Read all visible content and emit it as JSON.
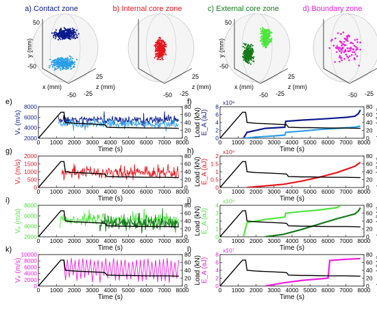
{
  "colors": {
    "contact_dark": "#0b1a8c",
    "contact_light": "#2a9fe8",
    "internal": "#e8161c",
    "external_light": "#4ce63c",
    "external_dark": "#137a1a",
    "boundary": "#f01de0",
    "load": "#000000"
  },
  "chart_data": [
    {
      "type": "scatter",
      "title": "a) Contact zone",
      "xlabel": "x (mm)",
      "ylabel": "y (mm)",
      "zlabel": "z (mm)",
      "ticks": {
        "y_top": "50",
        "y_bottom": "-50",
        "x": "-50",
        "z_a": "25",
        "z_b": "-25"
      },
      "series": [
        {
          "name": "",
          "color": "contact_dark"
        },
        {
          "name": "",
          "color": "contact_light"
        }
      ]
    },
    {
      "type": "scatter",
      "title": "b) Internal core zone",
      "xlabel": "",
      "ylabel": "",
      "zlabel": "z (mm)",
      "ticks": {
        "z_a": "25",
        "z_b": "-25",
        "x": "-50"
      },
      "series": [
        {
          "name": "",
          "color": "internal"
        }
      ]
    },
    {
      "type": "scatter",
      "title": "c) External core zone",
      "xlabel": "x (mm)",
      "ylabel": "y (mm)",
      "zlabel": "z (mm)",
      "ticks": {
        "y_top": "50",
        "y_bottom": "-50",
        "x": "-50",
        "z_a": "25",
        "z_b": "-25"
      },
      "series": [
        {
          "name": "",
          "color": "external_light"
        },
        {
          "name": "",
          "color": "external_dark"
        }
      ]
    },
    {
      "type": "scatter",
      "title": "d) Boundary zone",
      "xlabel": "",
      "ylabel": "",
      "zlabel": "z (mm)",
      "ticks": {
        "z_a": "25",
        "z_b": "-25",
        "x": "-50"
      },
      "series": [
        {
          "name": "",
          "color": "boundary"
        }
      ]
    },
    {
      "type": "line",
      "panel": "e)",
      "xlabel": "Time (s)",
      "ylabel": "Vₚ (m/s)",
      "y2label": "Load (kN)",
      "xlim": [
        0,
        8000
      ],
      "ylim": [
        2000,
        8000
      ],
      "y2lim": [
        0,
        80
      ],
      "xticks": [
        0,
        1000,
        2000,
        3000,
        4000,
        5000,
        6000,
        7000,
        8000
      ],
      "yticks": [
        2000,
        4000,
        6000,
        8000
      ],
      "y2ticks": [
        0,
        20,
        40,
        60,
        80
      ],
      "series": [
        {
          "kind": "noisy",
          "color": "contact_dark",
          "x": [
            1100,
            7800
          ],
          "base": 5500,
          "amp": 1200,
          "jump": 0.15
        },
        {
          "kind": "noisy",
          "color": "contact_light",
          "x": [
            1100,
            7800
          ],
          "base": 4700,
          "amp": 1000,
          "jump": 0.15
        },
        {
          "kind": "load",
          "color": "load"
        }
      ]
    },
    {
      "type": "line",
      "panel": "f)",
      "xlabel": "Time (s)",
      "ylabel": "E_A (aJ)",
      "y2label": "Load (kN)",
      "exponent": "x10⁸",
      "xlim": [
        0,
        8000
      ],
      "ylim": [
        0,
        8
      ],
      "y2lim": [
        0,
        80
      ],
      "xticks": [
        0,
        1000,
        2000,
        3000,
        4000,
        5000,
        6000,
        7000,
        8000
      ],
      "yticks": [
        0,
        2,
        4,
        6,
        8
      ],
      "y2ticks": [
        0,
        20,
        40,
        60,
        80
      ],
      "series": [
        {
          "kind": "path",
          "color": "contact_dark",
          "x": [
            1300,
            1500,
            2500,
            3600,
            3650,
            4500,
            6000,
            7000,
            7500,
            7700,
            7800
          ],
          "y": [
            0,
            1.5,
            2.5,
            2.8,
            4.3,
            4.6,
            5.0,
            5.3,
            5.6,
            6.3,
            7.2
          ]
        },
        {
          "kind": "path",
          "color": "contact_light",
          "x": [
            1300,
            2000,
            3000,
            3600,
            3650,
            4500,
            5500,
            6500,
            7500,
            7800
          ],
          "y": [
            0,
            0.3,
            0.6,
            0.8,
            1.5,
            1.8,
            2.2,
            2.5,
            2.8,
            3.1
          ]
        },
        {
          "kind": "load",
          "color": "load"
        }
      ]
    },
    {
      "type": "line",
      "panel": "g)",
      "xlabel": "Time (s)",
      "ylabel": "Vₚ (m/s)",
      "y2label": "Load (kN)",
      "xlim": [
        0,
        8000
      ],
      "ylim": [
        0,
        2000
      ],
      "y2lim": [
        0,
        80
      ],
      "xticks": [
        0,
        1000,
        2000,
        3000,
        4000,
        5000,
        6000,
        7000,
        8000
      ],
      "yticks": [
        0,
        500,
        1000,
        1500,
        2000
      ],
      "y2ticks": [
        0,
        20,
        40,
        60,
        80
      ],
      "series": [
        {
          "kind": "noisy",
          "color": "internal",
          "x": [
            1300,
            7800
          ],
          "base": 950,
          "amp": 450,
          "jump": 0.2
        },
        {
          "kind": "load",
          "color": "load"
        }
      ]
    },
    {
      "type": "line",
      "panel": "h)",
      "xlabel": "Time (s)",
      "ylabel": "E_A (aJ)",
      "y2label": "Load (kN)",
      "exponent": "x10⁹",
      "xlim": [
        0,
        8000
      ],
      "ylim": [
        0,
        2
      ],
      "y2lim": [
        0,
        80
      ],
      "xticks": [
        0,
        1000,
        2000,
        3000,
        4000,
        5000,
        6000,
        7000,
        8000
      ],
      "yticks": [
        0,
        0.5,
        1,
        1.5,
        2
      ],
      "y2ticks": [
        0,
        20,
        40,
        60,
        80
      ],
      "series": [
        {
          "kind": "path",
          "color": "internal",
          "x": [
            1500,
            2500,
            3500,
            4500,
            5500,
            6500,
            7500,
            7800
          ],
          "y": [
            0,
            0.1,
            0.2,
            0.4,
            0.65,
            0.95,
            1.35,
            1.6
          ]
        },
        {
          "kind": "load",
          "color": "load"
        }
      ]
    },
    {
      "type": "line",
      "panel": "i)",
      "xlabel": "Time (s)",
      "ylabel": "Vₚ (m/s)",
      "y2label": "Load (kN)",
      "xlim": [
        0,
        8000
      ],
      "ylim": [
        2000,
        8000
      ],
      "y2lim": [
        0,
        80
      ],
      "xticks": [
        0,
        1000,
        2000,
        3000,
        4000,
        5000,
        6000,
        7000,
        8000
      ],
      "yticks": [
        2000,
        4000,
        6000,
        8000
      ],
      "y2ticks": [
        0,
        20,
        40,
        60,
        80
      ],
      "series": [
        {
          "kind": "noisy",
          "color": "external_light",
          "x": [
            1200,
            7800
          ],
          "base": 5200,
          "amp": 1300,
          "jump": 0.2
        },
        {
          "kind": "noisy",
          "color": "external_dark",
          "x": [
            3400,
            7800
          ],
          "base": 4600,
          "amp": 1500,
          "jump": 0.2
        },
        {
          "kind": "load",
          "color": "load"
        }
      ]
    },
    {
      "type": "line",
      "panel": "j)",
      "xlabel": "Time (s)",
      "ylabel": "E_A (aJ)",
      "y2label": "Load (kN)",
      "exponent": "x10⁸",
      "xlim": [
        0,
        8000
      ],
      "ylim": [
        0,
        4
      ],
      "y2lim": [
        0,
        80
      ],
      "xticks": [
        0,
        1000,
        2000,
        3000,
        4000,
        5000,
        6000,
        7000,
        8000
      ],
      "yticks": [
        0,
        1,
        2,
        3,
        4
      ],
      "y2ticks": [
        0,
        20,
        40,
        60,
        80
      ],
      "series": [
        {
          "kind": "path",
          "color": "external_light",
          "x": [
            1300,
            1500,
            2500,
            3600,
            3650,
            4500,
            5500,
            6500,
            6700
          ],
          "y": [
            0,
            1.8,
            2.2,
            2.5,
            3.0,
            3.2,
            3.4,
            3.7,
            4.0
          ]
        },
        {
          "kind": "path",
          "color": "external_dark",
          "x": [
            2500,
            3500,
            4500,
            5500,
            6500,
            7500,
            7700,
            7800
          ],
          "y": [
            0,
            0.3,
            0.9,
            1.6,
            2.3,
            2.9,
            3.3,
            3.7
          ]
        },
        {
          "kind": "load",
          "color": "load"
        }
      ]
    },
    {
      "type": "line",
      "panel": "k)",
      "xlabel": "Time (s)",
      "ylabel": "Vₚ (m/s)",
      "y2label": "Load (kN)",
      "xlim": [
        0,
        8000
      ],
      "ylim": [
        0,
        10000
      ],
      "y2lim": [
        0,
        80
      ],
      "xticks": [
        0,
        1000,
        2000,
        3000,
        4000,
        5000,
        6000,
        7000,
        8000
      ],
      "yticks": [
        0,
        2000,
        4000,
        6000,
        8000,
        10000
      ],
      "y2ticks": [
        0,
        20,
        40,
        60,
        80
      ],
      "series": [
        {
          "kind": "zigzag",
          "color": "boundary",
          "x": [
            1400,
            7800
          ],
          "lo": 1000,
          "hi": 9000
        },
        {
          "kind": "load",
          "color": "load"
        }
      ]
    },
    {
      "type": "line",
      "panel": "l)",
      "xlabel": "Time (s)",
      "ylabel": "E_A (aJ)",
      "y2label": "Load (kN)",
      "exponent": "x10⁷",
      "xlim": [
        0,
        8000
      ],
      "ylim": [
        0,
        8
      ],
      "y2lim": [
        0,
        80
      ],
      "xticks": [
        0,
        1000,
        2000,
        3000,
        4000,
        5000,
        6000,
        7000,
        8000
      ],
      "yticks": [
        0,
        2,
        4,
        6,
        8
      ],
      "y2ticks": [
        0,
        20,
        40,
        60,
        80
      ],
      "series": [
        {
          "kind": "path",
          "color": "boundary",
          "x": [
            2500,
            3500,
            4500,
            5500,
            6000,
            6100,
            7000,
            7800
          ],
          "y": [
            0,
            0.8,
            1.4,
            1.8,
            2.0,
            6.5,
            6.8,
            7.0
          ]
        },
        {
          "kind": "load",
          "color": "load"
        }
      ]
    },
    {
      "type": "line",
      "name": "load",
      "x": [
        0,
        1250,
        1420,
        1500,
        2000,
        2500,
        3000,
        3500,
        3700,
        3800,
        4500,
        5000,
        6000,
        7000,
        7800
      ],
      "y": [
        0,
        66,
        66,
        40,
        38,
        37,
        36,
        35,
        34,
        28,
        27,
        27,
        26,
        26,
        25
      ]
    }
  ]
}
